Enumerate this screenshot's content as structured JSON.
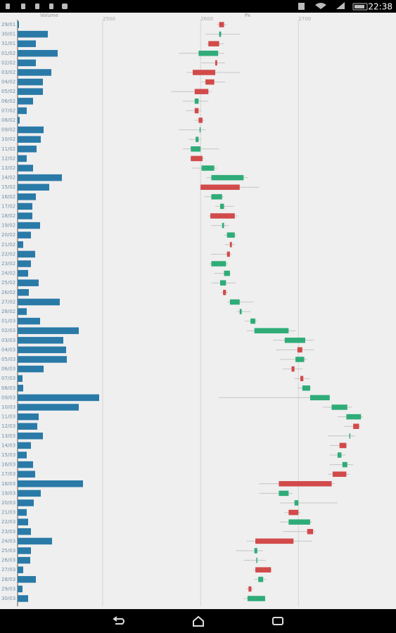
{
  "status_bar": {
    "time": "22:38"
  },
  "chart_data": {
    "type": "candlestick",
    "volume_title": "Volume",
    "price_title": "Px",
    "categories": [
      "29/01",
      "30/01",
      "31/01",
      "01/02",
      "02/02",
      "03/02",
      "04/02",
      "05/02",
      "06/02",
      "07/02",
      "08/02",
      "09/02",
      "10/02",
      "11/02",
      "12/02",
      "13/02",
      "14/02",
      "15/02",
      "16/02",
      "17/02",
      "18/02",
      "19/02",
      "20/02",
      "21/02",
      "22/02",
      "23/02",
      "24/02",
      "25/02",
      "26/02",
      "27/02",
      "28/02",
      "01/03",
      "02/03",
      "03/03",
      "04/03",
      "05/03",
      "06/03",
      "07/03",
      "08/03",
      "09/03",
      "10/03",
      "11/03",
      "12/03",
      "13/03",
      "14/03",
      "15/03",
      "16/03",
      "17/03",
      "18/03",
      "19/03",
      "20/03",
      "21/03",
      "22/03",
      "23/03",
      "24/03",
      "25/03",
      "26/03",
      "27/03",
      "28/03",
      "29/03",
      "30/03"
    ],
    "open": [
      2624,
      2619,
      2619,
      2598,
      2617,
      2615,
      2614,
      2608,
      2594,
      2598,
      2602,
      2599,
      2595,
      2590,
      2602,
      2601,
      2611,
      2640,
      2611,
      2620,
      2635,
      2622,
      2627,
      2632,
      2630,
      2611,
      2624,
      2620,
      2626,
      2630,
      2640,
      2651,
      2655,
      2686,
      2704,
      2697,
      2696,
      2705,
      2704,
      2712,
      2734,
      2749,
      2762,
      2752,
      2749,
      2740,
      2745,
      2749,
      2734,
      2680,
      2696,
      2700,
      2690,
      2715,
      2695,
      2655,
      2657,
      2672,
      2659,
      2652,
      2648
    ],
    "high": [
      2627,
      2640,
      2624,
      2624,
      2625,
      2640,
      2625,
      2611,
      2608,
      2601,
      2604,
      2605,
      2601,
      2619,
      2604,
      2617,
      2648,
      2660,
      2624,
      2634,
      2638,
      2629,
      2637,
      2635,
      2632,
      2628,
      2631,
      2636,
      2628,
      2654,
      2651,
      2658,
      2697,
      2716,
      2716,
      2709,
      2704,
      2712,
      2713,
      2733,
      2755,
      2766,
      2763,
      2758,
      2750,
      2748,
      2756,
      2752,
      2737,
      2694,
      2740,
      2702,
      2714,
      2717,
      2714,
      2664,
      2667,
      2673,
      2667,
      2654,
      2666
    ],
    "low": [
      2617,
      2605,
      2606,
      2578,
      2601,
      2586,
      2601,
      2570,
      2582,
      2585,
      2594,
      2578,
      2588,
      2582,
      2589,
      2591,
      2606,
      2600,
      2604,
      2615,
      2608,
      2611,
      2624,
      2625,
      2611,
      2609,
      2614,
      2611,
      2621,
      2627,
      2637,
      2645,
      2647,
      2674,
      2677,
      2681,
      2684,
      2696,
      2699,
      2619,
      2725,
      2740,
      2747,
      2730,
      2732,
      2732,
      2732,
      2730,
      2660,
      2660,
      2681,
      2686,
      2681,
      2684,
      2647,
      2636,
      2644,
      2654,
      2655,
      2647,
      2644
    ],
    "close": [
      2619,
      2621,
      2608,
      2618,
      2615,
      2592,
      2605,
      2594,
      2598,
      2594,
      2598,
      2600,
      2598,
      2600,
      2590,
      2614,
      2644,
      2600,
      2622,
      2624,
      2610,
      2624,
      2635,
      2630,
      2627,
      2626,
      2630,
      2626,
      2623,
      2640,
      2642,
      2656,
      2690,
      2707,
      2699,
      2706,
      2693,
      2702,
      2712,
      2732,
      2750,
      2764,
      2756,
      2753,
      2742,
      2744,
      2750,
      2735,
      2680,
      2690,
      2700,
      2690,
      2712,
      2709,
      2656,
      2658,
      2658,
      2656,
      2664,
      2649,
      2666
    ],
    "volume": [
      2,
      43,
      26,
      57,
      26,
      48,
      36,
      36,
      22,
      13,
      3,
      37,
      33,
      27,
      13,
      22,
      63,
      45,
      26,
      21,
      21,
      32,
      19,
      8,
      25,
      19,
      15,
      30,
      16,
      60,
      13,
      32,
      87,
      65,
      69,
      70,
      37,
      7,
      8,
      116,
      87,
      30,
      28,
      36,
      19,
      13,
      22,
      25,
      93,
      33,
      23,
      13,
      15,
      19,
      49,
      19,
      18,
      8,
      26,
      7,
      15
    ],
    "volume_xlim": [
      0,
      120
    ],
    "volume_color": "#2a7aa8",
    "xlim": [
      2413,
      2794
    ],
    "xticks": [
      2500,
      2600,
      2700
    ],
    "grid": true,
    "up_color": "#2fac78",
    "down_color": "#d24a4a",
    "wick_color": "#c4c4c4"
  }
}
